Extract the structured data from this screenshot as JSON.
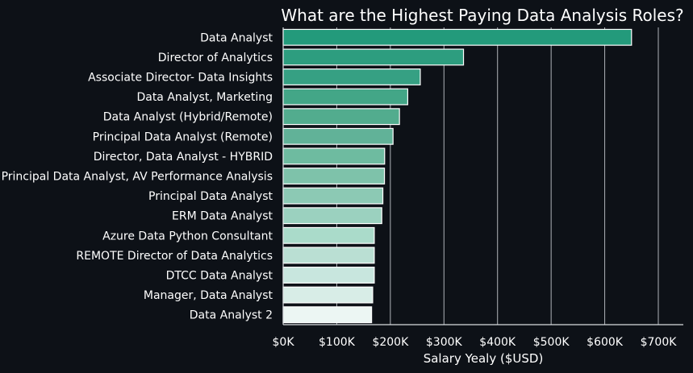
{
  "chart_data": {
    "type": "bar",
    "orientation": "horizontal",
    "title": "What are the Highest Paying Data Analysis Roles?",
    "xlabel": "Salary Yealy ($USD)",
    "ylabel": "",
    "xlim": [
      0,
      750000
    ],
    "xticks": [
      0,
      100000,
      200000,
      300000,
      400000,
      500000,
      600000,
      700000
    ],
    "xtick_labels": [
      "$0K",
      "$100K",
      "$200K",
      "$300K",
      "$400K",
      "$500K",
      "$600K",
      "$700K"
    ],
    "grid": "vertical",
    "categories": [
      "Data Analyst",
      "Director of Analytics",
      "Associate Director- Data Insights",
      "Data Analyst, Marketing",
      "Data Analyst (Hybrid/Remote)",
      "Principal Data Analyst (Remote)",
      "Director, Data Analyst - HYBRID",
      "Principal Data Analyst, AV Performance Analysis",
      "Principal Data Analyst",
      "ERM Data Analyst",
      "Azure Data Python Consultant",
      "REMOTE Director of Data Analytics",
      "DTCC Data Analyst",
      "Manager, Data Analyst",
      "Data Analyst 2"
    ],
    "values": [
      650000,
      336500,
      255830,
      232423,
      217000,
      205000,
      189309,
      189000,
      186000,
      184000,
      170000,
      170000,
      170000,
      167000,
      165000
    ],
    "colors": [
      "#239a7b",
      "#2d9d7f",
      "#36a083",
      "#43a687",
      "#52ac8e",
      "#61b298",
      "#6ebba0",
      "#7ec2aa",
      "#8cc9b4",
      "#9bd1bf",
      "#aadbca",
      "#badfd3",
      "#c8e6de",
      "#d8ede7",
      "#ecf6f3"
    ]
  }
}
